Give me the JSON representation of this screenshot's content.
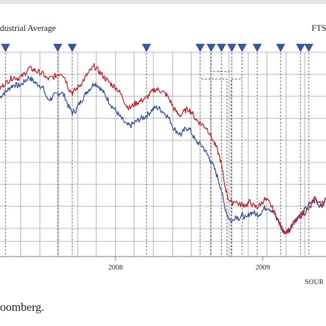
{
  "legend": {
    "left_label": "dustrial Average",
    "right_label": "FTS"
  },
  "source_label": "SOUR",
  "caption": "oomberg.",
  "colors": {
    "series_red": "#c0202a",
    "series_blue": "#2f4f9e",
    "marker_fill": "#3a5aa0",
    "grid": "#9a9a9a",
    "event_line": "#555555"
  },
  "chart_data": {
    "type": "line",
    "x_tick_labels": [
      "2008",
      "2009"
    ],
    "y_gridlines": 10,
    "grid": true,
    "event_markers": 15,
    "series": [
      {
        "color": "#c0202a",
        "values": [
          100,
          101.4,
          102.8,
          104.1,
          104.6,
          104.2,
          104.9,
          106.4,
          108.3,
          107.9,
          107.2,
          106.6,
          105.9,
          103.8,
          104.3,
          104.9,
          105.8,
          106.6,
          104.1,
          99.8,
          98.1,
          99.6,
          101.2,
          103.3,
          105.6,
          107.4,
          109.2,
          107.6,
          105.9,
          104.2,
          102.8,
          101.3,
          100.3,
          98.4,
          95.8,
          92.5,
          91.9,
          93.3,
          94.2,
          94.9,
          95.6,
          96.9,
          98.6,
          99.7,
          99.3,
          98.4,
          97.2,
          94.8,
          91.6,
          89.5,
          88.8,
          90.6,
          91.5,
          89.8,
          87.2,
          85.9,
          84.8,
          83.6,
          81.1,
          77.6,
          74.4,
          69.3,
          60.2,
          54.2,
          52.3,
          53.3,
          51.6,
          51.7,
          51.4,
          52.8,
          50.9,
          50.5,
          51.9,
          53.8,
          52.9,
          50.8,
          47.6,
          44.4,
          41.1,
          40.4,
          41.3,
          43.9,
          45.3,
          47.1,
          48.1,
          49.3,
          51.2,
          53.7,
          52.5,
          51.4,
          54.2
        ]
      },
      {
        "color": "#2f4f9e",
        "values": [
          96.2,
          98,
          99.1,
          100.7,
          101.6,
          101,
          101.7,
          103.2,
          104.7,
          103.3,
          102,
          101.3,
          99.8,
          95.5,
          95.6,
          97,
          97.6,
          98.5,
          96.2,
          92.2,
          89.8,
          91,
          93.8,
          96.1,
          98.7,
          100.2,
          102.3,
          101.3,
          99.4,
          97.3,
          94.8,
          92.4,
          90.7,
          88.4,
          86.5,
          84.7,
          84.4,
          85.6,
          86.6,
          87.5,
          88.1,
          89.4,
          91.1,
          92,
          91.6,
          90.3,
          88.9,
          86.5,
          83.3,
          81.8,
          80.7,
          82.8,
          83.6,
          81.3,
          78,
          77,
          75.7,
          73.1,
          70.3,
          67.4,
          63.3,
          58.3,
          50.9,
          46.6,
          44.3,
          47,
          45.9,
          47.3,
          45.6,
          48.2,
          48.3,
          47.3,
          48.2,
          50.2,
          50.5,
          49.3,
          47.1,
          44.4,
          40.6,
          40.2,
          41.1,
          44.2,
          45.9,
          47.4,
          49.1,
          50.9,
          52.4,
          54.8,
          51.2,
          52,
          53.6
        ]
      }
    ]
  }
}
